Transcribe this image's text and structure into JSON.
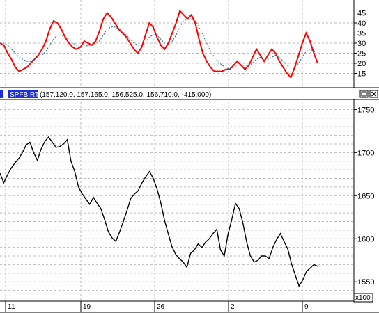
{
  "window": {
    "symbol": "SPFB.RTS",
    "ohlc_text": "(157,120.0, 157,165.0, 156,525.0, 156,710.0, -415.000)",
    "scale_label": "x100",
    "buttons": [
      "minimize",
      "close"
    ]
  },
  "colors": {
    "indicator_line": "#ff0000",
    "indicator_signal": "#1a6b8a",
    "price": "#000000",
    "grid": "#b8b8b8",
    "title_bar": "#1c2fd6"
  },
  "chart_data": [
    {
      "type": "line",
      "panel": "indicator",
      "ylim": [
        10,
        50
      ],
      "yticks": [
        15,
        20,
        25,
        30,
        35,
        40,
        45
      ],
      "grid": true,
      "series": [
        {
          "values": [
            30,
            29,
            25,
            22,
            18,
            16,
            17,
            18,
            20,
            22,
            24,
            27,
            31,
            37,
            41,
            40,
            37,
            33,
            30,
            28,
            27,
            28,
            31,
            30,
            29,
            31,
            36,
            42,
            45,
            43,
            40,
            37,
            35,
            33,
            30,
            27,
            25,
            28,
            34,
            40,
            38,
            33,
            29,
            27,
            30,
            35,
            40,
            46,
            44,
            42,
            44,
            40,
            32,
            25,
            21,
            18,
            16,
            16,
            16,
            17,
            17,
            19,
            21,
            19,
            17,
            19,
            23,
            27,
            24,
            21,
            24,
            27,
            25,
            21,
            18,
            15,
            13,
            18,
            24,
            30,
            35,
            31,
            25,
            20
          ]
        },
        {
          "values": [
            30,
            30,
            29,
            27,
            25,
            23,
            22,
            21,
            21,
            22,
            23,
            24,
            26,
            29,
            32,
            34,
            34,
            33,
            32,
            30,
            29,
            28,
            28,
            29,
            29,
            30,
            31,
            34,
            37,
            38,
            38,
            37,
            36,
            34,
            32,
            30,
            29,
            29,
            30,
            33,
            34,
            34,
            32,
            30,
            30,
            31,
            34,
            38,
            41,
            42,
            42,
            41,
            38,
            34,
            30,
            26,
            23,
            21,
            19,
            18,
            17,
            18,
            19,
            19,
            19,
            19,
            20,
            22,
            23,
            22,
            22,
            23,
            24,
            23,
            21,
            19,
            18,
            18,
            20,
            23,
            26,
            27,
            26,
            24
          ]
        }
      ]
    },
    {
      "type": "line",
      "panel": "price",
      "ylim": [
        1530,
        1760
      ],
      "yticks": [
        1550,
        1600,
        1650,
        1700,
        1750
      ],
      "ylabel_scale": "x100",
      "grid": true,
      "x_labels": [
        "11",
        "19",
        "26",
        "2",
        "9"
      ],
      "series": [
        {
          "values": [
            1676,
            1665,
            1674,
            1682,
            1688,
            1693,
            1700,
            1709,
            1712,
            1700,
            1691,
            1704,
            1713,
            1718,
            1712,
            1706,
            1707,
            1710,
            1715,
            1690,
            1678,
            1660,
            1652,
            1646,
            1640,
            1648,
            1641,
            1635,
            1622,
            1608,
            1601,
            1597,
            1608,
            1620,
            1633,
            1647,
            1652,
            1656,
            1665,
            1672,
            1678,
            1670,
            1658,
            1642,
            1622,
            1606,
            1591,
            1582,
            1577,
            1573,
            1567,
            1583,
            1587,
            1594,
            1590,
            1596,
            1600,
            1606,
            1611,
            1587,
            1580,
            1605,
            1622,
            1641,
            1635,
            1618,
            1596,
            1580,
            1573,
            1575,
            1580,
            1580,
            1577,
            1590,
            1599,
            1606,
            1597,
            1588,
            1571,
            1558,
            1545,
            1552,
            1562,
            1566,
            1570,
            1568
          ]
        }
      ]
    }
  ]
}
